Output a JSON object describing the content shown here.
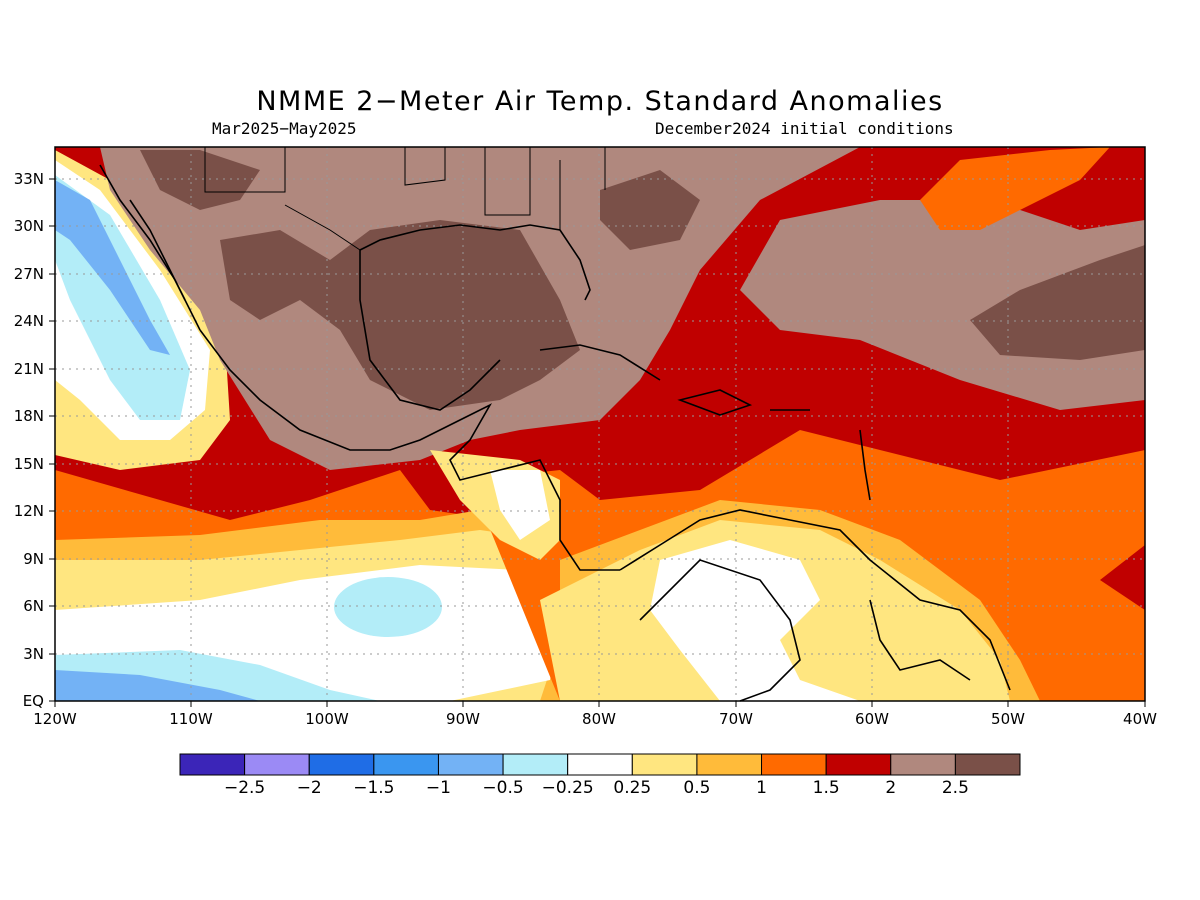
{
  "title": "NMME 2−Meter Air Temp. Standard Anomalies",
  "subtitle_left": "Mar2025−May2025",
  "subtitle_right": "December2024 initial conditions",
  "lat_labels": [
    "33N",
    "30N",
    "27N",
    "24N",
    "21N",
    "18N",
    "15N",
    "12N",
    "9N",
    "6N",
    "3N",
    "EQ"
  ],
  "lon_labels": [
    "120W",
    "110W",
    "100W",
    "90W",
    "80W",
    "70W",
    "60W",
    "50W",
    "40W"
  ],
  "colorbar": {
    "colors": [
      "#3b25b8",
      "#9b8af5",
      "#1f6de6",
      "#3a96f0",
      "#73b2f5",
      "#b3edf8",
      "#ffffff",
      "#ffe680",
      "#ffbb3a",
      "#ff6a00",
      "#c00000",
      "#b0887e",
      "#7a5048"
    ],
    "labels": [
      "−2.5",
      "−2",
      "−1.5",
      "−1",
      "−0.5",
      "−0.25",
      "0.25",
      "0.5",
      "1",
      "1.5",
      "2",
      "2.5"
    ]
  },
  "legend_entries": {
    "very_high": "#7a5048",
    "high": "#b0887e",
    "strong": "#c00000",
    "moderate": "#ff6a00",
    "mild": "#ffbb3a",
    "slight": "#ffe680",
    "neutral": "#ffffff",
    "cool_slight": "#b3edf8",
    "cool_mild": "#73b2f5"
  }
}
